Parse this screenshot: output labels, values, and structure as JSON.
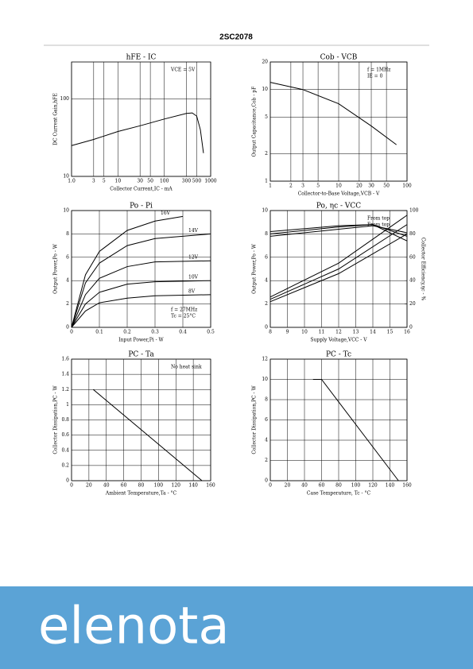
{
  "header": {
    "title": "2SC2078"
  },
  "chart_data": [
    {
      "type": "line",
      "title": "hFE - IC",
      "xlabel": "Collector Current,IC - mA",
      "ylabel": "DC Current Gain,hFE",
      "annotations": [
        "VCE = 5V"
      ],
      "xlog": true,
      "ylog": true,
      "xlim": [
        1,
        1000
      ],
      "ylim": [
        10,
        300
      ],
      "xticks": [
        {
          "value": 1,
          "label": "1.0"
        },
        3,
        5,
        10,
        30,
        50,
        100,
        300,
        500,
        1000
      ],
      "yticks": [
        10,
        100
      ],
      "grid": true,
      "series": [
        {
          "color": "#000000",
          "x": [
            1,
            3,
            10,
            30,
            100,
            300,
            400,
            500,
            600,
            700
          ],
          "values": [
            25,
            30,
            38,
            45,
            55,
            65,
            66,
            60,
            40,
            20
          ]
        }
      ]
    },
    {
      "type": "line",
      "title": "Cob - VCB",
      "xlabel": "Collector-to-Base Voltage,VCB - V",
      "ylabel": "Output Capacitance,Cob - pF",
      "annotations": [
        "f = 1MHz",
        "IE = 0"
      ],
      "xlog": true,
      "ylog": true,
      "xlim": [
        1,
        100
      ],
      "ylim": [
        1,
        20
      ],
      "xticks": [
        1,
        2,
        3,
        5,
        10,
        20,
        30,
        50,
        100
      ],
      "yticks": [
        1,
        2,
        5,
        10,
        20
      ],
      "grid": true,
      "series": [
        {
          "color": "#000000",
          "x": [
            1,
            3,
            10,
            30,
            70
          ],
          "values": [
            12,
            10,
            7,
            4,
            2.5
          ]
        }
      ]
    },
    {
      "type": "line",
      "title": "Po - Pi",
      "xlabel": "Input Power,Pi - W",
      "ylabel": "Output Power,Po - W",
      "annotations": [
        "f = 27MHz",
        "Tc = 25°C"
      ],
      "xlim": [
        0,
        0.5
      ],
      "ylim": [
        0,
        10
      ],
      "xticks": [
        0,
        0.1,
        0.2,
        0.3,
        0.4,
        0.5
      ],
      "yticks": [
        0,
        2,
        4,
        6,
        8,
        10
      ],
      "grid": true,
      "series": [
        {
          "name": "16V",
          "color": "#000000",
          "x": [
            0,
            0.05,
            0.1,
            0.2,
            0.3,
            0.4
          ],
          "values": [
            0,
            4.5,
            6.5,
            8.3,
            9.1,
            9.5
          ]
        },
        {
          "name": "14V",
          "color": "#000000",
          "x": [
            0,
            0.05,
            0.1,
            0.2,
            0.3,
            0.5
          ],
          "values": [
            0,
            3.8,
            5.5,
            7,
            7.6,
            8
          ]
        },
        {
          "name": "12V",
          "color": "#000000",
          "x": [
            0,
            0.05,
            0.1,
            0.2,
            0.3,
            0.5
          ],
          "values": [
            0,
            2.8,
            4.2,
            5.2,
            5.6,
            5.7
          ]
        },
        {
          "name": "10V",
          "color": "#000000",
          "x": [
            0,
            0.05,
            0.1,
            0.2,
            0.3,
            0.5
          ],
          "values": [
            0,
            2,
            3,
            3.7,
            3.9,
            4
          ]
        },
        {
          "name": "8V",
          "color": "#000000",
          "x": [
            0,
            0.05,
            0.1,
            0.2,
            0.3,
            0.5
          ],
          "values": [
            0,
            1.4,
            2.1,
            2.5,
            2.7,
            2.8
          ]
        }
      ]
    },
    {
      "type": "line",
      "title": "Po, ηc - VCC",
      "xlabel": "Supply Voltage,VCC - V",
      "ylabel": "Output Power,Po - W",
      "y2label": "Collector Efficiency,ηc - %",
      "annotations": [
        "From top",
        "From top"
      ],
      "xlim": [
        8,
        16
      ],
      "ylim": [
        0,
        10
      ],
      "y2lim": [
        0,
        100
      ],
      "xticks": [
        8,
        9,
        10,
        11,
        12,
        13,
        14,
        15,
        16
      ],
      "yticks": [
        0,
        2,
        4,
        6,
        8,
        10
      ],
      "y2ticks": [
        0,
        20,
        40,
        60,
        80,
        100
      ],
      "grid": true,
      "series": [
        {
          "color": "#000000",
          "x": [
            8,
            12,
            16
          ],
          "values": [
            2.6,
            5.5,
            9.6
          ]
        },
        {
          "color": "#000000",
          "x": [
            8,
            12,
            16
          ],
          "values": [
            2.4,
            5,
            8.8
          ]
        },
        {
          "color": "#000000",
          "x": [
            8,
            12,
            16
          ],
          "values": [
            2.2,
            4.6,
            8
          ]
        },
        {
          "color": "#000000",
          "axis": "y2",
          "x": [
            8,
            12,
            14,
            16
          ],
          "values": [
            82,
            87,
            88,
            74
          ]
        },
        {
          "color": "#000000",
          "axis": "y2",
          "x": [
            8,
            12,
            14,
            16
          ],
          "values": [
            80,
            86,
            88,
            78
          ]
        },
        {
          "color": "#000000",
          "axis": "y2",
          "x": [
            8,
            12,
            14,
            16
          ],
          "values": [
            78,
            84,
            87,
            81
          ]
        }
      ]
    },
    {
      "type": "line",
      "title": "PC - Ta",
      "xlabel": "Ambient Temperature,Ta - °C",
      "ylabel": "Collector Dissipation,PC - W",
      "annotations": [
        "No heat sink"
      ],
      "xlim": [
        0,
        160
      ],
      "ylim": [
        0,
        1.6
      ],
      "xticks": [
        0,
        20,
        40,
        60,
        80,
        100,
        120,
        140,
        160
      ],
      "yticks": [
        0,
        0.2,
        0.4,
        0.6,
        0.8,
        1,
        1.2,
        1.4,
        1.6
      ],
      "grid": true,
      "series": [
        {
          "color": "#000000",
          "x": [
            25,
            150
          ],
          "values": [
            1.2,
            0
          ]
        }
      ]
    },
    {
      "type": "line",
      "title": "PC - Tc",
      "xlabel": "Case Temperature, Tc - °C",
      "ylabel": "Collector Dissipation,PC - W",
      "annotations": [],
      "xlim": [
        0,
        160
      ],
      "ylim": [
        0,
        12
      ],
      "xticks": [
        0,
        20,
        40,
        60,
        80,
        100,
        120,
        140,
        160
      ],
      "yticks": [
        0,
        2,
        4,
        6,
        8,
        10,
        12
      ],
      "grid": true,
      "series": [
        {
          "color": "#000000",
          "x": [
            50,
            60,
            150
          ],
          "values": [
            10,
            10,
            0
          ]
        }
      ]
    }
  ],
  "watermark": {
    "text": "elenota",
    "color": "#5ba3d6"
  }
}
